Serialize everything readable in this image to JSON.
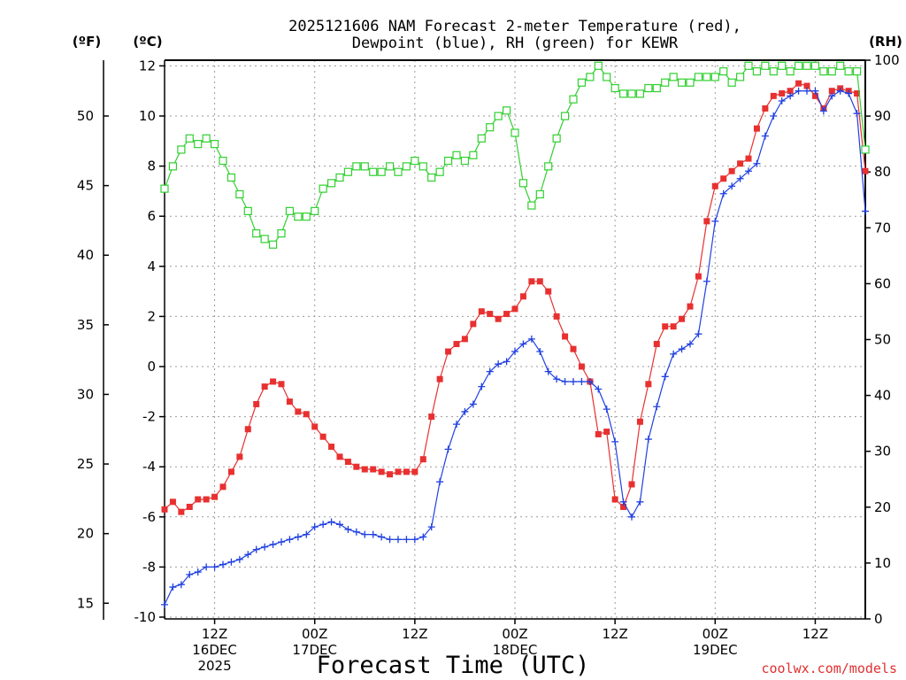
{
  "chart_data": {
    "type": "line",
    "title": "2025121606 NAM Forecast 2-meter Temperature (red),",
    "subtitle": "Dewpoint (blue), RH (green) for KEWR",
    "xlabel": "Forecast Time (UTC)",
    "axis_units": {
      "fahrenheit": "(ºF)",
      "celsius": "(ºC)",
      "rh": "(RH)"
    },
    "xlim": [
      0,
      84
    ],
    "ylim_celsius": [
      -10,
      12.3
    ],
    "ylim_rh": [
      0,
      100
    ],
    "x_ticks": [
      {
        "x": 6,
        "lines": [
          "12Z",
          "16DEC",
          "2025"
        ]
      },
      {
        "x": 18,
        "lines": [
          "00Z",
          "17DEC"
        ]
      },
      {
        "x": 30,
        "lines": [
          "12Z"
        ]
      },
      {
        "x": 42,
        "lines": [
          "00Z",
          "18DEC"
        ]
      },
      {
        "x": 54,
        "lines": [
          "12Z"
        ]
      },
      {
        "x": 66,
        "lines": [
          "00Z",
          "19DEC"
        ]
      },
      {
        "x": 78,
        "lines": [
          "12Z"
        ]
      }
    ],
    "celsius_ticks": [
      "-10",
      "-8",
      "-6",
      "-4",
      "-2",
      "0",
      "2",
      "4",
      "6",
      "8",
      "10",
      "12"
    ],
    "fahrenheit_ticks": [
      "15",
      "20",
      "25",
      "30",
      "35",
      "40",
      "45",
      "50"
    ],
    "rh_ticks": [
      "0",
      "10",
      "20",
      "30",
      "40",
      "50",
      "60",
      "70",
      "80",
      "90",
      "100"
    ],
    "grid": true,
    "series": [
      {
        "name": "Temperature",
        "axis": "celsius",
        "color": "#e83030",
        "marker": "filled-square",
        "x": [
          0,
          1,
          2,
          3,
          4,
          5,
          6,
          7,
          8,
          9,
          10,
          11,
          12,
          13,
          14,
          15,
          16,
          17,
          18,
          19,
          20,
          21,
          22,
          23,
          24,
          25,
          26,
          27,
          28,
          29,
          30,
          31,
          32,
          33,
          34,
          35,
          36,
          37,
          38,
          39,
          40,
          41,
          42,
          43,
          44,
          45,
          46,
          47,
          48,
          49,
          50,
          51,
          52,
          53,
          54,
          55,
          56,
          57,
          58,
          59,
          60,
          61,
          62,
          63,
          64,
          65,
          66,
          67,
          68,
          69,
          70,
          71,
          72,
          73,
          74,
          75,
          76,
          77,
          78,
          79,
          80,
          81,
          82,
          83,
          84
        ],
        "values": [
          -5.7,
          -5.4,
          -5.8,
          -5.6,
          -5.3,
          -5.3,
          -5.2,
          -4.8,
          -4.2,
          -3.6,
          -2.5,
          -1.5,
          -0.8,
          -0.6,
          -0.7,
          -1.4,
          -1.8,
          -1.9,
          -2.4,
          -2.8,
          -3.2,
          -3.6,
          -3.8,
          -4.0,
          -4.1,
          -4.1,
          -4.2,
          -4.3,
          -4.2,
          -4.2,
          -4.2,
          -3.7,
          -2.0,
          -0.5,
          0.6,
          0.9,
          1.1,
          1.7,
          2.2,
          2.1,
          1.9,
          2.1,
          2.3,
          2.8,
          3.4,
          3.4,
          3.0,
          2.0,
          1.2,
          0.7,
          0.0,
          -0.6,
          -2.7,
          -2.6,
          -5.3,
          -5.6,
          -4.7,
          -2.2,
          -0.7,
          0.9,
          1.6,
          1.6,
          1.9,
          2.4,
          3.6,
          5.8,
          7.2,
          7.5,
          7.8,
          8.1,
          8.3,
          9.5,
          10.3,
          10.8,
          10.9,
          11.0,
          11.3,
          11.2,
          10.8,
          10.3,
          11.0,
          11.1,
          11.0,
          10.9,
          7.8
        ]
      },
      {
        "name": "Dewpoint",
        "axis": "celsius",
        "color": "#2040e0",
        "marker": "plus",
        "x": [
          0,
          1,
          2,
          3,
          4,
          5,
          6,
          7,
          8,
          9,
          10,
          11,
          12,
          13,
          14,
          15,
          16,
          17,
          18,
          19,
          20,
          21,
          22,
          23,
          24,
          25,
          26,
          27,
          28,
          29,
          30,
          31,
          32,
          33,
          34,
          35,
          36,
          37,
          38,
          39,
          40,
          41,
          42,
          43,
          44,
          45,
          46,
          47,
          48,
          49,
          50,
          51,
          52,
          53,
          54,
          55,
          56,
          57,
          58,
          59,
          60,
          61,
          62,
          63,
          64,
          65,
          66,
          67,
          68,
          69,
          70,
          71,
          72,
          73,
          74,
          75,
          76,
          77,
          78,
          79,
          80,
          81,
          82,
          83,
          84
        ],
        "values": [
          -9.5,
          -8.8,
          -8.7,
          -8.3,
          -8.2,
          -8.0,
          -8.0,
          -7.9,
          -7.8,
          -7.7,
          -7.5,
          -7.3,
          -7.2,
          -7.1,
          -7.0,
          -6.9,
          -6.8,
          -6.7,
          -6.4,
          -6.3,
          -6.2,
          -6.3,
          -6.5,
          -6.6,
          -6.7,
          -6.7,
          -6.8,
          -6.9,
          -6.9,
          -6.9,
          -6.9,
          -6.8,
          -6.4,
          -4.6,
          -3.3,
          -2.3,
          -1.8,
          -1.5,
          -0.8,
          -0.2,
          0.1,
          0.2,
          0.6,
          0.9,
          1.1,
          0.6,
          -0.2,
          -0.5,
          -0.6,
          -0.6,
          -0.6,
          -0.6,
          -0.9,
          -1.7,
          -3.0,
          -5.4,
          -6.0,
          -5.4,
          -2.9,
          -1.6,
          -0.4,
          0.5,
          0.7,
          0.9,
          1.3,
          3.4,
          5.8,
          6.9,
          7.2,
          7.5,
          7.8,
          8.1,
          9.2,
          10.0,
          10.6,
          10.8,
          11.0,
          11.0,
          11.0,
          10.2,
          10.8,
          11.0,
          10.9,
          10.1,
          6.2
        ]
      },
      {
        "name": "RH",
        "axis": "rh",
        "color": "#30d030",
        "marker": "open-square",
        "x": [
          0,
          1,
          2,
          3,
          4,
          5,
          6,
          7,
          8,
          9,
          10,
          11,
          12,
          13,
          14,
          15,
          16,
          17,
          18,
          19,
          20,
          21,
          22,
          23,
          24,
          25,
          26,
          27,
          28,
          29,
          30,
          31,
          32,
          33,
          34,
          35,
          36,
          37,
          38,
          39,
          40,
          41,
          42,
          43,
          44,
          45,
          46,
          47,
          48,
          49,
          50,
          51,
          52,
          53,
          54,
          55,
          56,
          57,
          58,
          59,
          60,
          61,
          62,
          63,
          64,
          65,
          66,
          67,
          68,
          69,
          70,
          71,
          72,
          73,
          74,
          75,
          76,
          77,
          78,
          79,
          80,
          81,
          82,
          83,
          84
        ],
        "values": [
          77,
          81,
          84,
          86,
          85,
          86,
          85,
          82,
          79,
          76,
          73,
          69,
          68,
          67,
          69,
          73,
          72,
          72,
          73,
          77,
          78,
          79,
          80,
          81,
          81,
          80,
          80,
          81,
          80,
          81,
          82,
          81,
          79,
          80,
          82,
          83,
          82,
          83,
          86,
          88,
          90,
          91,
          87,
          78,
          74,
          76,
          81,
          86,
          90,
          93,
          96,
          97,
          99,
          97,
          95,
          94,
          94,
          94,
          95,
          95,
          96,
          97,
          96,
          96,
          97,
          97,
          97,
          98,
          96,
          97,
          99,
          98,
          99,
          98,
          99,
          98,
          99,
          99,
          99,
          98,
          98,
          99,
          98,
          98,
          84
        ]
      }
    ]
  },
  "credit": "coolwx.com/models"
}
